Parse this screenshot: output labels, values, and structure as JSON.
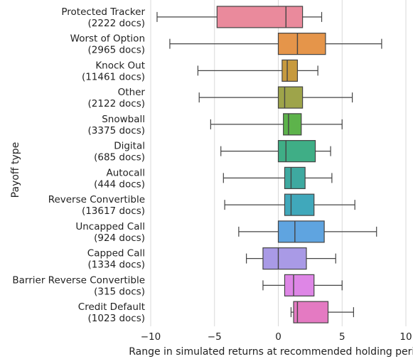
{
  "chart_data": {
    "type": "boxplot",
    "orientation": "horizontal",
    "xlabel": "Range in simulated returns at recommended holding period",
    "ylabel": "Payoff type",
    "xlim": [
      -10,
      10
    ],
    "xticks": [
      -10,
      -5,
      0,
      5,
      10
    ],
    "xtick_labels": [
      "−10",
      "−5",
      "0",
      "5",
      "10"
    ],
    "grid": "vertical",
    "categories": [
      {
        "label": "Protected Tracker",
        "count": "(2222 docs)",
        "color": "#ea8a9c",
        "whisker_low": -9.5,
        "q1": -4.8,
        "median": 0.6,
        "q3": 1.9,
        "whisker_high": 3.4
      },
      {
        "label": "Worst of Option",
        "count": "(2965 docs)",
        "color": "#e5954a",
        "whisker_low": -8.5,
        "q1": 0.0,
        "median": 1.5,
        "q3": 3.7,
        "whisker_high": 8.1
      },
      {
        "label": "Knock Out",
        "count": "(11461 docs)",
        "color": "#c79a3e",
        "whisker_low": -6.3,
        "q1": 0.3,
        "median": 0.7,
        "q3": 1.5,
        "whisker_high": 3.1
      },
      {
        "label": "Other",
        "count": "(2122 docs)",
        "color": "#9ea44a",
        "whisker_low": -6.2,
        "q1": 0.0,
        "median": 0.5,
        "q3": 1.9,
        "whisker_high": 5.8
      },
      {
        "label": "Snowball",
        "count": "(3375 docs)",
        "color": "#5db34b",
        "whisker_low": -5.3,
        "q1": 0.4,
        "median": 0.8,
        "q3": 1.8,
        "whisker_high": 5.0
      },
      {
        "label": "Digital",
        "count": "(685 docs)",
        "color": "#3fae86",
        "whisker_low": -4.5,
        "q1": 0.0,
        "median": 0.6,
        "q3": 2.9,
        "whisker_high": 4.1
      },
      {
        "label": "Autocall",
        "count": "(444 docs)",
        "color": "#3ea9a0",
        "whisker_low": -4.3,
        "q1": 0.5,
        "median": 1.0,
        "q3": 2.1,
        "whisker_high": 4.2
      },
      {
        "label": "Reverse Convertible",
        "count": "(13617 docs)",
        "color": "#40a8bb",
        "whisker_low": -4.2,
        "q1": 0.5,
        "median": 1.0,
        "q3": 2.8,
        "whisker_high": 6.0
      },
      {
        "label": "Uncapped Call",
        "count": "(924 docs)",
        "color": "#5fa4e0",
        "whisker_low": -3.1,
        "q1": 0.0,
        "median": 1.3,
        "q3": 3.6,
        "whisker_high": 7.7
      },
      {
        "label": "Capped Call",
        "count": "(1334 docs)",
        "color": "#a99ae6",
        "whisker_low": -2.5,
        "q1": -1.2,
        "median": 0.0,
        "q3": 2.2,
        "whisker_high": 4.5
      },
      {
        "label": "Barrier Reverse Convertible",
        "count": "(315 docs)",
        "color": "#de86e6",
        "whisker_low": -1.2,
        "q1": 0.5,
        "median": 1.2,
        "q3": 2.8,
        "whisker_high": 5.0
      },
      {
        "label": "Credit Default",
        "count": "(1023 docs)",
        "color": "#e47ac2",
        "whisker_low": 1.0,
        "q1": 1.2,
        "median": 1.5,
        "q3": 3.9,
        "whisker_high": 5.9
      }
    ]
  }
}
